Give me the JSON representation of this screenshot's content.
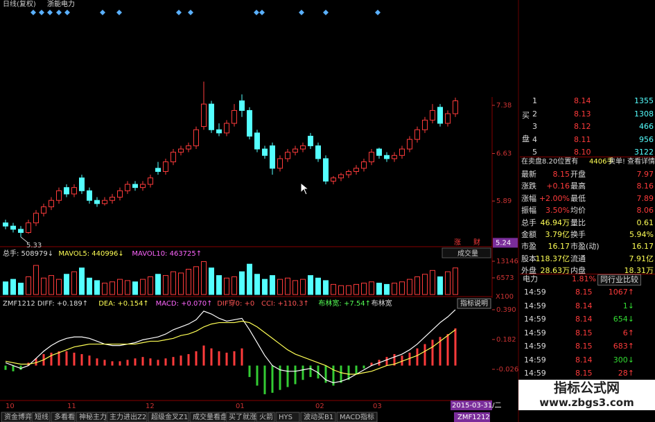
{
  "header": {
    "period": "日线(复权)",
    "stock": "浙能电力"
  },
  "price_chart": {
    "ylim": [
      5.19,
      9.02
    ],
    "yticks": [
      7.38,
      6.63,
      5.89
    ],
    "cursor_price": 5.24,
    "low_price": 5.33,
    "buttons": [
      "涨",
      "财"
    ],
    "candles": [
      [
        5.55,
        5.6,
        5.45,
        5.5
      ],
      [
        5.5,
        5.55,
        5.4,
        5.45
      ],
      [
        5.45,
        5.5,
        5.33,
        5.4
      ],
      [
        5.4,
        5.6,
        5.38,
        5.55
      ],
      [
        5.55,
        5.75,
        5.5,
        5.7
      ],
      [
        5.7,
        5.85,
        5.65,
        5.8
      ],
      [
        5.8,
        5.95,
        5.75,
        5.9
      ],
      [
        5.9,
        6.1,
        5.85,
        6.05
      ],
      [
        6.1,
        6.15,
        5.95,
        6.0
      ],
      [
        6.0,
        6.15,
        5.95,
        6.1
      ],
      [
        6.25,
        6.3,
        6.0,
        6.05
      ],
      [
        6.05,
        6.1,
        5.85,
        5.9
      ],
      [
        5.9,
        5.95,
        5.8,
        5.85
      ],
      [
        5.85,
        5.95,
        5.82,
        5.9
      ],
      [
        5.9,
        6.0,
        5.85,
        5.95
      ],
      [
        5.95,
        6.1,
        5.9,
        6.05
      ],
      [
        6.05,
        6.2,
        6.0,
        6.15
      ],
      [
        6.15,
        6.2,
        6.05,
        6.1
      ],
      [
        6.1,
        6.2,
        6.05,
        6.15
      ],
      [
        6.15,
        6.3,
        6.1,
        6.25
      ],
      [
        6.4,
        6.5,
        6.3,
        6.35
      ],
      [
        6.35,
        6.55,
        6.3,
        6.5
      ],
      [
        6.5,
        6.7,
        6.45,
        6.65
      ],
      [
        6.65,
        6.75,
        6.6,
        6.7
      ],
      [
        6.7,
        6.8,
        6.65,
        6.75
      ],
      [
        6.75,
        7.05,
        6.7,
        7.0
      ],
      [
        7.05,
        7.75,
        7.0,
        7.4
      ],
      [
        7.4,
        7.45,
        6.95,
        7.0
      ],
      [
        7.0,
        7.1,
        6.9,
        6.95
      ],
      [
        6.95,
        7.15,
        6.9,
        7.1
      ],
      [
        7.1,
        7.4,
        7.05,
        7.3
      ],
      [
        7.45,
        7.55,
        7.2,
        7.3
      ],
      [
        7.3,
        7.35,
        6.85,
        6.9
      ],
      [
        6.95,
        7.0,
        6.65,
        6.7
      ],
      [
        6.7,
        6.75,
        6.55,
        6.6
      ],
      [
        6.75,
        6.8,
        6.3,
        6.4
      ],
      [
        6.4,
        6.6,
        6.35,
        6.55
      ],
      [
        6.55,
        6.7,
        6.5,
        6.65
      ],
      [
        6.65,
        6.75,
        6.6,
        6.7
      ],
      [
        6.7,
        6.8,
        6.65,
        6.75
      ],
      [
        6.9,
        6.95,
        6.7,
        6.75
      ],
      [
        6.75,
        6.8,
        6.5,
        6.55
      ],
      [
        6.55,
        6.6,
        6.15,
        6.2
      ],
      [
        6.2,
        6.28,
        6.15,
        6.25
      ],
      [
        6.25,
        6.33,
        6.2,
        6.3
      ],
      [
        6.3,
        6.38,
        6.25,
        6.35
      ],
      [
        6.35,
        6.45,
        6.3,
        6.4
      ],
      [
        6.4,
        6.55,
        6.35,
        6.5
      ],
      [
        6.5,
        6.7,
        6.45,
        6.65
      ],
      [
        6.7,
        6.72,
        6.55,
        6.6
      ],
      [
        6.6,
        6.65,
        6.5,
        6.55
      ],
      [
        6.55,
        6.65,
        6.5,
        6.6
      ],
      [
        6.6,
        6.75,
        6.55,
        6.7
      ],
      [
        6.7,
        6.9,
        6.65,
        6.85
      ],
      [
        6.85,
        7.05,
        6.8,
        7.0
      ],
      [
        7.0,
        7.2,
        6.95,
        7.15
      ],
      [
        7.15,
        7.4,
        7.1,
        7.3
      ],
      [
        7.35,
        7.4,
        7.05,
        7.1
      ],
      [
        7.1,
        7.3,
        7.05,
        7.25
      ],
      [
        7.25,
        7.5,
        7.2,
        7.45
      ]
    ]
  },
  "volume": {
    "labels": [
      "总手: 508979↓",
      "MAVOL5: 440996↓",
      "MAVOL10: 463725↑"
    ],
    "dropdown": "成交量",
    "ylim": [
      0,
      18350
    ],
    "yticks": [
      13146,
      6573
    ],
    "unit": "X100",
    "values": [
      5000,
      6000,
      4500,
      7000,
      11500,
      6500,
      7500,
      6000,
      8000,
      9000,
      10500,
      6500,
      5500,
      4500,
      5000,
      6000,
      5500,
      5000,
      6000,
      7000,
      8000,
      7500,
      9000,
      8500,
      10000,
      11000,
      13000,
      10500,
      7500,
      6500,
      7000,
      9000,
      12000,
      8000,
      6000,
      7500,
      6000,
      6500,
      5500,
      6000,
      7500,
      6500,
      5500,
      4000,
      3500,
      3500,
      4000,
      4500,
      5000,
      4500,
      4000,
      4500,
      5000,
      6000,
      7000,
      8000,
      9500,
      7000,
      9000,
      10500
    ]
  },
  "macd": {
    "labels": [
      "ZMF1212 DIFF: +0.189↑",
      "DEA: +0.154↑",
      "MACD: +0.070↑",
      "DIF穿0: +0",
      "CCI: +110.3↑",
      "布林宽: +7.54↑",
      "布林宽"
    ],
    "button": "指标说明",
    "ylim": [
      -0.244,
      0.472
    ],
    "yticks": [
      {
        "value": 0.39,
        "label": "0.390"
      },
      0.182,
      -0.026
    ],
    "hist": [
      -0.03,
      -0.04,
      -0.03,
      0.02,
      0.05,
      0.08,
      0.09,
      0.1,
      0.1,
      0.09,
      0.08,
      0.07,
      0.05,
      0.04,
      0.03,
      0.03,
      0.04,
      0.05,
      0.06,
      0.05,
      0.04,
      0.05,
      0.06,
      0.07,
      0.08,
      0.1,
      0.14,
      0.12,
      0.1,
      0.09,
      0.1,
      0.12,
      -0.08,
      -0.14,
      -0.2,
      -0.19,
      -0.17,
      -0.15,
      -0.13,
      -0.1,
      -0.08,
      -0.09,
      -0.12,
      -0.14,
      -0.12,
      -0.1,
      -0.06,
      -0.02,
      0.02,
      0.04,
      0.06,
      0.08,
      0.07,
      0.09,
      0.12,
      0.15,
      0.18,
      0.2,
      0.22,
      0.26
    ],
    "diff": [
      0.02,
      0.0,
      -0.02,
      0.0,
      0.05,
      0.1,
      0.14,
      0.17,
      0.19,
      0.2,
      0.2,
      0.19,
      0.17,
      0.15,
      0.14,
      0.14,
      0.15,
      0.16,
      0.18,
      0.19,
      0.2,
      0.22,
      0.25,
      0.27,
      0.29,
      0.32,
      0.38,
      0.36,
      0.33,
      0.31,
      0.32,
      0.33,
      0.25,
      0.16,
      0.07,
      0.0,
      -0.03,
      -0.04,
      -0.04,
      -0.03,
      -0.02,
      -0.05,
      -0.1,
      -0.12,
      -0.11,
      -0.09,
      -0.06,
      -0.03,
      0.0,
      0.02,
      0.04,
      0.06,
      0.08,
      0.11,
      0.15,
      0.2,
      0.25,
      0.3,
      0.34,
      0.39
    ],
    "dea": [
      0.03,
      0.02,
      0.01,
      0.01,
      0.02,
      0.04,
      0.07,
      0.09,
      0.11,
      0.13,
      0.14,
      0.15,
      0.15,
      0.15,
      0.15,
      0.15,
      0.15,
      0.15,
      0.16,
      0.17,
      0.17,
      0.18,
      0.19,
      0.21,
      0.22,
      0.24,
      0.27,
      0.29,
      0.3,
      0.3,
      0.3,
      0.31,
      0.3,
      0.27,
      0.23,
      0.19,
      0.15,
      0.11,
      0.08,
      0.06,
      0.04,
      0.02,
      0.0,
      -0.03,
      -0.05,
      -0.06,
      -0.06,
      -0.05,
      -0.04,
      -0.02,
      0.0,
      0.01,
      0.03,
      0.05,
      0.07,
      0.1,
      0.13,
      0.17,
      0.21,
      0.25
    ]
  },
  "x_labels": [
    "10",
    "11",
    "12",
    "01",
    "02",
    "03"
  ],
  "date_box": "2015-03-31/二",
  "tabs": [
    "资金博弈",
    "短线",
    "多看看",
    "神秘主力",
    "主力进出Z2",
    "超级金叉Z1",
    "成交量看盘",
    "买了就涨",
    "火箭",
    "HYS",
    "波动买B1",
    "MACD指标",
    "ZMF1212"
  ],
  "order_book": {
    "side": [
      "买",
      "盘"
    ],
    "rows": [
      [
        "1",
        "8.14",
        "1355"
      ],
      [
        "2",
        "8.13",
        "1308"
      ],
      [
        "3",
        "8.12",
        "466"
      ],
      [
        "4",
        "8.11",
        "956"
      ],
      [
        "5",
        "8.10",
        "3122"
      ]
    ]
  },
  "notice": [
    "在卖盘8.20位置有",
    "4406手",
    "卖单!",
    "查看详情"
  ],
  "stats": [
    [
      "最新",
      "8.15",
      "开盘",
      "7.97"
    ],
    [
      "涨跌",
      "+0.16",
      "最高",
      "8.16"
    ],
    [
      "涨幅",
      "+2.00%",
      "最低",
      "7.89"
    ],
    [
      "振幅",
      "3.50%",
      "均价",
      "8.06"
    ],
    [
      "总手",
      "46.94万",
      "量比",
      "0.61"
    ],
    [
      "金额",
      "3.79亿",
      "换手",
      "5.94%"
    ],
    [
      "市盈",
      "16.17",
      "市盈(动)",
      "16.17"
    ],
    [
      "股本",
      "118.37亿",
      "流通",
      "7.91亿"
    ],
    [
      "外盘",
      "28.63万",
      "内盘",
      "18.31万"
    ]
  ],
  "sector": [
    "电力",
    "1.81%",
    "同行业比较"
  ],
  "ticks": [
    [
      "14:59",
      "8.15",
      "1067↑"
    ],
    [
      "14:59",
      "8.14",
      "1↓"
    ],
    [
      "14:59",
      "8.14",
      "654↓"
    ],
    [
      "14:59",
      "8.15",
      "6↑"
    ],
    [
      "14:59",
      "8.15",
      "683↑"
    ],
    [
      "14:59",
      "8.14",
      "300↓"
    ],
    [
      "14:59",
      "8.15",
      "28↑"
    ]
  ],
  "watermark": [
    "指标公式网",
    "www.zbgs3.com"
  ]
}
